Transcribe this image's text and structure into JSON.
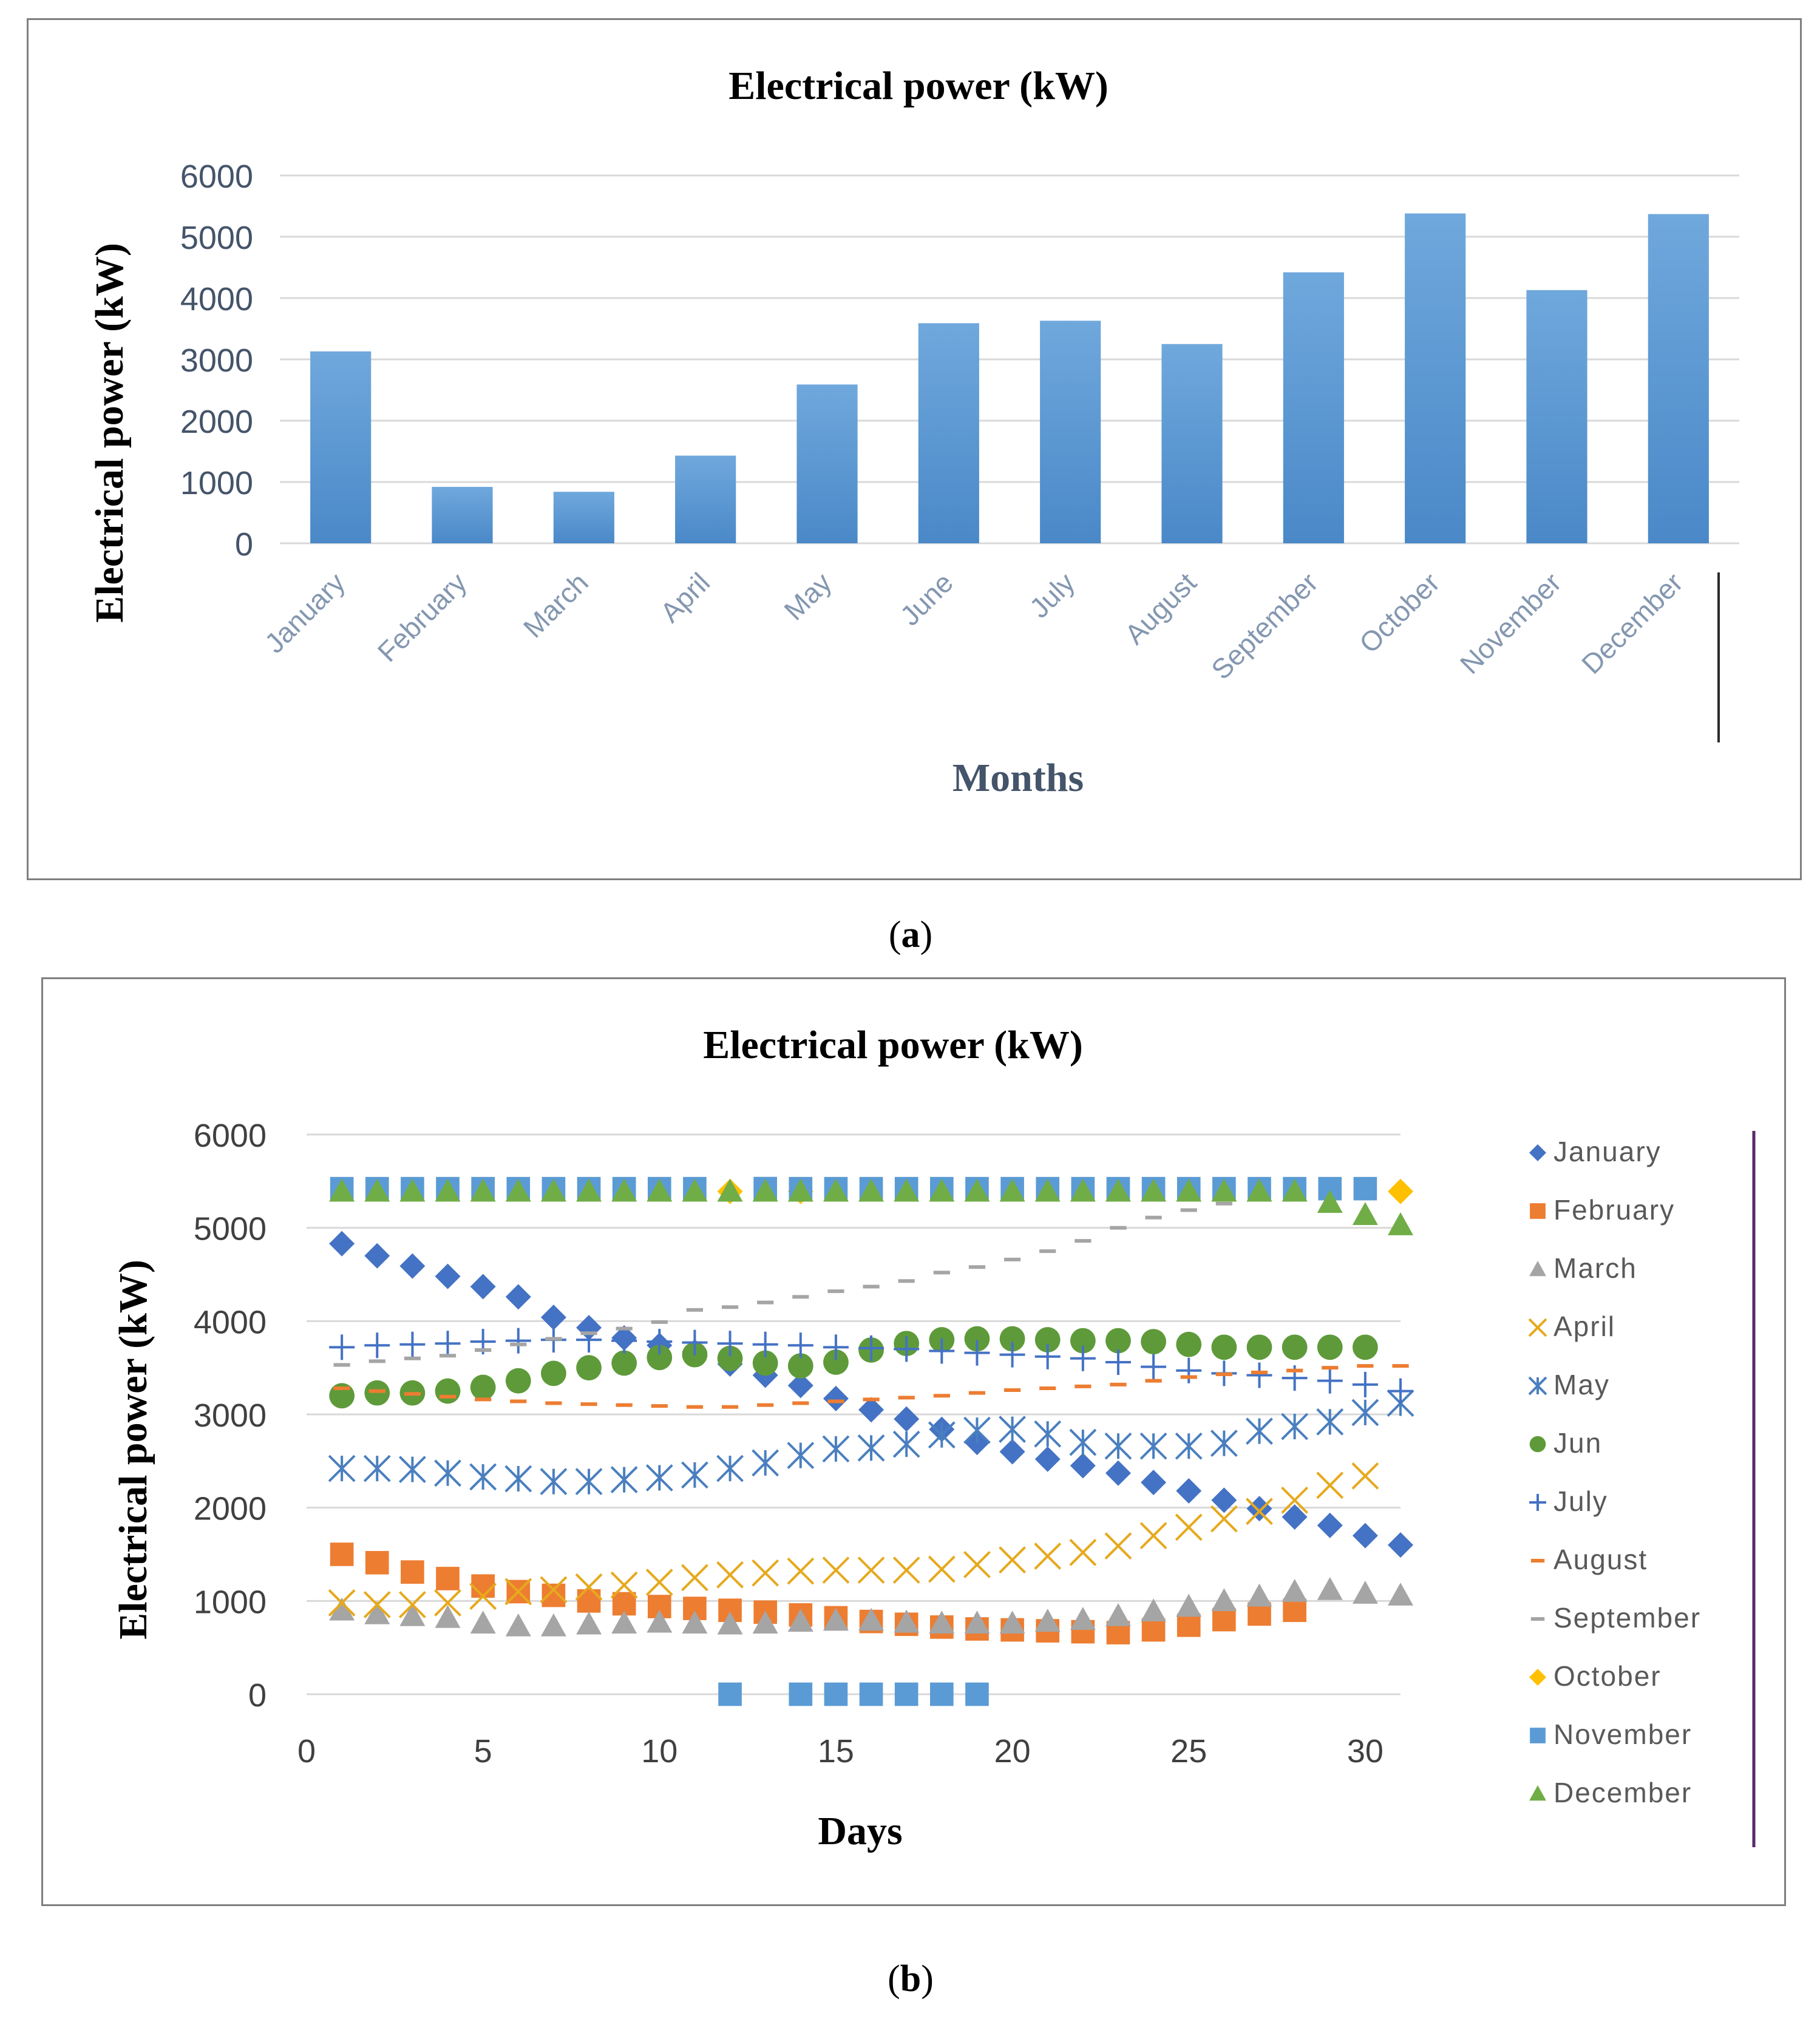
{
  "chart_data": [
    {
      "type": "bar",
      "panel": "a",
      "title": "Electrical power (kW)",
      "xlabel": "Months",
      "ylabel": "Electrical power (kW)",
      "ylim": [
        0,
        6000
      ],
      "yticks": [
        0,
        1000,
        2000,
        3000,
        4000,
        5000,
        6000
      ],
      "categories": [
        "January",
        "February",
        "March",
        "April",
        "May",
        "June",
        "July",
        "August",
        "September",
        "October",
        "November",
        "December"
      ],
      "values": [
        3130,
        920,
        840,
        1430,
        2590,
        3590,
        3630,
        3250,
        4420,
        5380,
        4130,
        5370
      ],
      "bar_color": "#5b9bd5",
      "grid": true
    },
    {
      "type": "scatter",
      "panel": "b",
      "title": "Electrical power (kW)",
      "xlabel": "Days",
      "ylabel": "Electrical power (kW)",
      "xlim": [
        0,
        31
      ],
      "ylim": [
        0,
        6000
      ],
      "xticks": [
        0,
        5,
        10,
        15,
        20,
        25,
        30
      ],
      "yticks": [
        0,
        1000,
        2000,
        3000,
        4000,
        5000,
        6000
      ],
      "legend_position": "right",
      "series": [
        {
          "name": "January",
          "marker": "diamond",
          "color": "#4472c4",
          "x": [
            1,
            2,
            3,
            4,
            5,
            6,
            7,
            8,
            9,
            10,
            11,
            12,
            13,
            14,
            15,
            16,
            17,
            18,
            19,
            20,
            21,
            22,
            23,
            24,
            25,
            26,
            27,
            28,
            29,
            30,
            31
          ],
          "y": [
            4830,
            4700,
            4590,
            4480,
            4370,
            4260,
            4040,
            3930,
            3820,
            3740,
            3670,
            3540,
            3420,
            3310,
            3170,
            3050,
            2950,
            2840,
            2700,
            2600,
            2520,
            2450,
            2370,
            2270,
            2180,
            2080,
            1990,
            1900,
            1810,
            1700,
            1600
          ]
        },
        {
          "name": "February",
          "marker": "square",
          "color": "#ed7d31",
          "x": [
            1,
            2,
            3,
            4,
            5,
            6,
            7,
            8,
            9,
            10,
            11,
            12,
            13,
            14,
            15,
            16,
            17,
            18,
            19,
            20,
            21,
            22,
            23,
            24,
            25,
            26,
            27,
            28
          ],
          "y": [
            1500,
            1410,
            1310,
            1240,
            1160,
            1100,
            1060,
            1000,
            970,
            940,
            920,
            900,
            880,
            850,
            820,
            780,
            750,
            720,
            700,
            690,
            680,
            670,
            660,
            690,
            740,
            800,
            860,
            900
          ]
        },
        {
          "name": "March",
          "marker": "triangle",
          "color": "#a5a5a5",
          "x": [
            1,
            2,
            3,
            4,
            5,
            6,
            7,
            8,
            9,
            10,
            11,
            12,
            13,
            14,
            15,
            16,
            17,
            18,
            19,
            20,
            21,
            22,
            23,
            24,
            25,
            26,
            27,
            28,
            29,
            30,
            31
          ],
          "y": [
            900,
            860,
            840,
            820,
            760,
            730,
            730,
            750,
            760,
            770,
            760,
            750,
            760,
            780,
            790,
            790,
            770,
            760,
            760,
            760,
            780,
            800,
            840,
            890,
            940,
            1000,
            1050,
            1100,
            1120,
            1080,
            1060
          ]
        },
        {
          "name": "April",
          "marker": "x",
          "color": "#e6a91d",
          "x": [
            1,
            2,
            3,
            4,
            5,
            6,
            7,
            8,
            9,
            10,
            11,
            12,
            13,
            14,
            15,
            16,
            17,
            18,
            19,
            20,
            21,
            22,
            23,
            24,
            25,
            26,
            27,
            28,
            29,
            30
          ],
          "y": [
            980,
            960,
            960,
            980,
            1050,
            1100,
            1120,
            1150,
            1170,
            1200,
            1250,
            1280,
            1300,
            1320,
            1330,
            1330,
            1330,
            1340,
            1390,
            1440,
            1480,
            1520,
            1590,
            1700,
            1790,
            1880,
            1960,
            2080,
            2240,
            2340
          ]
        },
        {
          "name": "May",
          "marker": "star",
          "color": "#4a7fbf",
          "x": [
            1,
            2,
            3,
            4,
            5,
            6,
            7,
            8,
            9,
            10,
            11,
            12,
            13,
            14,
            15,
            16,
            17,
            18,
            19,
            20,
            21,
            22,
            23,
            24,
            25,
            26,
            27,
            28,
            29,
            30,
            31
          ],
          "y": [
            2420,
            2420,
            2410,
            2370,
            2330,
            2310,
            2280,
            2280,
            2300,
            2320,
            2350,
            2420,
            2480,
            2560,
            2630,
            2640,
            2680,
            2780,
            2830,
            2840,
            2790,
            2700,
            2660,
            2660,
            2660,
            2690,
            2820,
            2870,
            2920,
            3020,
            3120
          ]
        },
        {
          "name": "Jun",
          "marker": "circle",
          "color": "#5e9a3a",
          "x": [
            1,
            2,
            3,
            4,
            5,
            6,
            7,
            8,
            9,
            10,
            11,
            12,
            13,
            14,
            15,
            16,
            17,
            18,
            19,
            20,
            21,
            22,
            23,
            24,
            25,
            26,
            27,
            28,
            29,
            30
          ],
          "y": [
            3200,
            3230,
            3230,
            3250,
            3290,
            3360,
            3440,
            3500,
            3550,
            3610,
            3640,
            3600,
            3550,
            3520,
            3560,
            3690,
            3760,
            3800,
            3810,
            3810,
            3800,
            3790,
            3790,
            3780,
            3750,
            3720,
            3720,
            3720,
            3720,
            3720
          ]
        },
        {
          "name": "July",
          "marker": "plus",
          "color": "#4472c4",
          "x": [
            1,
            2,
            3,
            4,
            5,
            6,
            7,
            8,
            9,
            10,
            11,
            12,
            13,
            14,
            15,
            16,
            17,
            18,
            19,
            20,
            21,
            22,
            23,
            24,
            25,
            26,
            27,
            28,
            29,
            30,
            31
          ],
          "y": [
            3720,
            3740,
            3750,
            3760,
            3780,
            3790,
            3800,
            3800,
            3790,
            3780,
            3770,
            3760,
            3750,
            3740,
            3720,
            3710,
            3700,
            3680,
            3660,
            3640,
            3620,
            3600,
            3560,
            3510,
            3470,
            3440,
            3420,
            3390,
            3360,
            3320,
            3250
          ]
        },
        {
          "name": "August",
          "marker": "dash",
          "color": "#ed7d31",
          "x": [
            1,
            2,
            3,
            4,
            5,
            6,
            7,
            8,
            9,
            10,
            11,
            12,
            13,
            14,
            15,
            16,
            17,
            18,
            19,
            20,
            21,
            22,
            23,
            24,
            25,
            26,
            27,
            28,
            29,
            30,
            31
          ],
          "y": [
            3280,
            3250,
            3220,
            3190,
            3160,
            3140,
            3120,
            3110,
            3100,
            3090,
            3080,
            3080,
            3100,
            3120,
            3140,
            3160,
            3180,
            3200,
            3230,
            3260,
            3280,
            3300,
            3320,
            3360,
            3400,
            3430,
            3450,
            3470,
            3500,
            3520,
            3520
          ]
        },
        {
          "name": "September",
          "marker": "dash",
          "color": "#a5a5a5",
          "x": [
            1,
            2,
            3,
            4,
            5,
            6,
            7,
            8,
            9,
            10,
            11,
            12,
            13,
            14,
            15,
            16,
            17,
            18,
            19,
            20,
            21,
            22,
            23,
            24,
            25,
            26
          ],
          "y": [
            3530,
            3570,
            3600,
            3630,
            3690,
            3750,
            3810,
            3870,
            3920,
            3990,
            4120,
            4150,
            4200,
            4260,
            4320,
            4370,
            4430,
            4520,
            4580,
            4660,
            4750,
            4860,
            5000,
            5110,
            5190,
            5260
          ]
        },
        {
          "name": "October",
          "marker": "diamond",
          "color": "#ffc000",
          "x": [
            12,
            14,
            31
          ],
          "y": [
            5390,
            5390,
            5390
          ]
        },
        {
          "name": "November",
          "marker": "square",
          "color": "#5b9bd5",
          "x": [
            1,
            2,
            3,
            4,
            5,
            6,
            7,
            8,
            9,
            10,
            11,
            12,
            13,
            14,
            15,
            16,
            17,
            18,
            19,
            20,
            21,
            22,
            23,
            24,
            25,
            26,
            27,
            28,
            29,
            30,
            13,
            14,
            15,
            16,
            17,
            18,
            19
          ],
          "y": [
            5420,
            5420,
            5420,
            5420,
            5420,
            5420,
            5420,
            5420,
            5420,
            5420,
            5420,
            0,
            5420,
            0,
            0,
            0,
            0,
            0,
            0,
            5420,
            5420,
            5420,
            5420,
            5420,
            5420,
            5420,
            5420,
            5420,
            5420,
            5420,
            5420,
            5420,
            5420,
            5420,
            5420,
            5420,
            5420
          ]
        },
        {
          "name": "December",
          "marker": "triangle",
          "color": "#70ad47",
          "x": [
            1,
            2,
            3,
            4,
            5,
            6,
            7,
            8,
            9,
            10,
            11,
            12,
            13,
            14,
            15,
            16,
            17,
            18,
            19,
            20,
            21,
            22,
            23,
            24,
            25,
            26,
            27,
            28,
            29,
            30,
            31
          ],
          "y": [
            5390,
            5390,
            5390,
            5390,
            5390,
            5390,
            5390,
            5390,
            5390,
            5390,
            5390,
            5390,
            5390,
            5390,
            5390,
            5390,
            5390,
            5390,
            5390,
            5390,
            5390,
            5390,
            5390,
            5390,
            5390,
            5390,
            5390,
            5390,
            5270,
            5140,
            5030
          ]
        }
      ]
    }
  ],
  "captions": {
    "a": "a",
    "b": "b"
  }
}
